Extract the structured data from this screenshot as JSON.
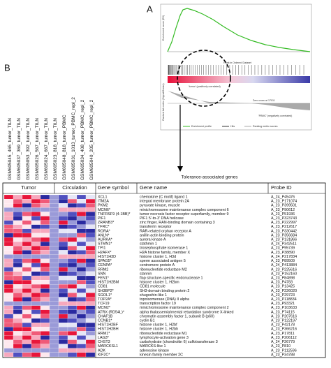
{
  "panel_a": {
    "label": "A",
    "y_label_top": "Enrichment score (ES)",
    "x_label": "Rank in Ordered Dataset",
    "y_label_bottom": "Ranked list metric (Signal2Noise)",
    "zero_cross": "Zero cross at 17011",
    "pos_label": "'tumor' (positively correlated)",
    "neg_label": "'PBMC' (negatively correlated)",
    "legend": [
      "Enrichment profile",
      "Hits",
      "Ranking metric scores"
    ]
  },
  "arrow_label": "Tolerance-associated genes",
  "panel_b": {
    "label": "B",
    "samples": [
      "GSM605045_465_tumor_TILN",
      "GSM605037_369_tumor_TILN",
      "GSM605053_392_tumor_TILN",
      "GSM605026_567_tumor_TILN",
      "GSM605024_667_tumor_TILN",
      "GSM605023_818_tumor_TILN",
      "GSM605048_818_tumor_PBMC",
      "GSM605031_1013_tumor_PBMC_repl_2",
      "GSM605034_408_tumor_PBMC_repl_2",
      "GSM605040_205_tumor_PBMC_repl_2"
    ],
    "groups": [
      "Tumor",
      "Circulation"
    ],
    "columns": [
      "Gene symbol",
      "Gene name",
      "Probe ID"
    ],
    "rows": [
      [
        "XCL1",
        "chemokine (C motif) ligand 1",
        "A_24_P45476"
      ],
      [
        "ITM2A",
        "integral membrane protein 2A",
        "A_23_P171074"
      ],
      [
        "PKM2",
        "pyruvate kinase, muscle",
        "A_23_P399501"
      ],
      [
        "MCM6*",
        "minichromosome maintenance complex component 6",
        "A_23_P90612"
      ],
      [
        "TNFRSF9 (4-1BB)*",
        "tumor necrosis factor receptor superfamily, member 9",
        "A_23_P51936"
      ],
      [
        "PIF1",
        "PIF1 5'-to-3' DNA helicase",
        "A_23_P323743"
      ],
      [
        "ZRANB3*",
        "zinc finger, RAN-binding domain containing 3",
        "A_23_P222997"
      ],
      [
        "TFRC*",
        "transferrin receptor",
        "A_23_P212617"
      ],
      [
        "RORA*",
        "RAR-related orphan receptor A",
        "A_23_P330442"
      ],
      [
        "ANLN*",
        "anillin actin binding protein",
        "A_23_P356684"
      ],
      [
        "AURKA*",
        "aurora kinase A",
        "A_23_P131866"
      ],
      [
        "STMN1*",
        "stathmin 1",
        "A_24_P342511"
      ],
      [
        "TPI1",
        "triosephosphate isomerase 1",
        "A_23_P95739"
      ],
      [
        "H2AFX*",
        "H2A histone family, member X",
        "A_23_P38890"
      ],
      [
        "HIST1H3D",
        "histone cluster 1, H3d",
        "A_24_P217834"
      ],
      [
        "SPAG5*",
        "sperm associated antigen 5",
        "A_23_P89509"
      ],
      [
        "CENPA*",
        "centromere protein A",
        "A_24_P413884"
      ],
      [
        "RRM2",
        "ribonucleotide reductase M2",
        "A_23_P225616"
      ],
      [
        "SNN",
        "stannin",
        "A_23_P152160"
      ],
      [
        "FEN1*",
        "flap structure-specific endonuclease 1",
        "A_23_P84898"
      ],
      [
        "HIST1H2BM",
        "histone cluster 1, H2bm",
        "A_23_P4783"
      ],
      [
        "CD81",
        "CD81 molecule",
        "A_23_P13425"
      ],
      [
        "SH3BP2*",
        "SH3-domain binding protein 2",
        "A_23_P226020"
      ],
      [
        "SGOL1*",
        "shugoshin-like 1",
        "A_23_P29723"
      ],
      [
        "TOP2A*",
        "topoisomerase (DNA) II alpha",
        "A_23_P118834"
      ],
      [
        "TCF19",
        "transcription factor 19",
        "A_23_P93321"
      ],
      [
        "MCM2*",
        "minichromosome maintenance complex component 2",
        "A_23_P103633"
      ],
      [
        "ATRX (RD54L)*",
        "alpha thalassemia/mental retardation syndrome X-linked",
        "A_23_P74115"
      ],
      [
        "CHAF1B",
        "chromatin assembly factor 1, subunit B (p60)",
        "A_23_P207616"
      ],
      [
        "CCNB1*",
        "cyclin B1",
        "A_23_P122197"
      ],
      [
        "HIST1H2BF",
        "histone cluster 1, H2bf",
        "A_23_P42178"
      ],
      [
        "HIST1H2BH",
        "histone cluster 1, H2bh",
        "A_23_P366216"
      ],
      [
        "RRM1*",
        "ribonucleotide reductase M1",
        "A_23_P17811"
      ],
      [
        "LAG3*",
        "lymphocyte-activation gene 3",
        "A_23_P206112"
      ],
      [
        "CHST3",
        "carbohydrate (chondroitin 6) sulfotransferase 3",
        "A_24_P26779"
      ],
      [
        "MARCKSL1",
        "MARCKS-like 1",
        "A_23_P810"
      ],
      [
        "ADK",
        "adenosine kinase",
        "A_23_P112596"
      ],
      [
        "KIF2C*",
        "kinesin family member 2C",
        "A_23_P34788"
      ]
    ]
  }
}
